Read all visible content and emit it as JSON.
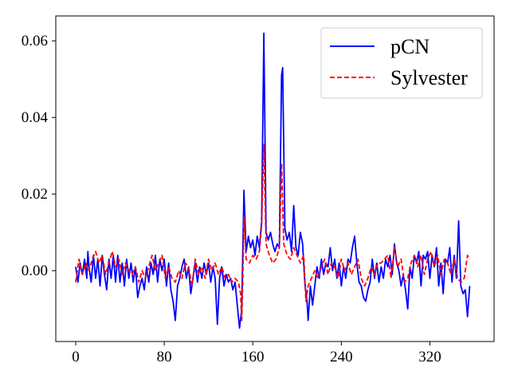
{
  "chart_data": {
    "type": "line",
    "title": "",
    "xlabel": "",
    "ylabel": "",
    "xlim": [
      -18,
      378
    ],
    "ylim": [
      -0.0185,
      0.0665
    ],
    "xticks": [
      0,
      80,
      160,
      240,
      320
    ],
    "yticks": [
      0.0,
      0.02,
      0.04,
      0.06
    ],
    "ytick_labels": [
      "0.00",
      "0.02",
      "0.04",
      "0.06"
    ],
    "grid": false,
    "legend_position": "top-right",
    "series": [
      {
        "name": "pCN",
        "color": "#0000ff",
        "style": "solid",
        "points": [
          [
            0,
            0.001
          ],
          [
            2,
            -0.003
          ],
          [
            4,
            0.002
          ],
          [
            6,
            -0.001
          ],
          [
            8,
            0.003
          ],
          [
            10,
            -0.002
          ],
          [
            11,
            0.005
          ],
          [
            12,
            0.001
          ],
          [
            14,
            -0.003
          ],
          [
            16,
            0.004
          ],
          [
            18,
            -0.002
          ],
          [
            20,
            0.003
          ],
          [
            22,
            -0.004
          ],
          [
            24,
            0.004
          ],
          [
            26,
            -0.001
          ],
          [
            28,
            -0.005
          ],
          [
            30,
            0.003
          ],
          [
            32,
            -0.002
          ],
          [
            34,
            0.004
          ],
          [
            36,
            -0.003
          ],
          [
            38,
            0.004
          ],
          [
            40,
            -0.003
          ],
          [
            42,
            0.002
          ],
          [
            44,
            -0.004
          ],
          [
            46,
            0.003
          ],
          [
            48,
            -0.002
          ],
          [
            50,
            0.002
          ],
          [
            52,
            -0.003
          ],
          [
            54,
            0.001
          ],
          [
            56,
            -0.007
          ],
          [
            58,
            -0.004
          ],
          [
            60,
            -0.002
          ],
          [
            62,
            -0.005
          ],
          [
            64,
            0.001
          ],
          [
            66,
            -0.003
          ],
          [
            68,
            0.002
          ],
          [
            70,
            -0.001
          ],
          [
            72,
            0.004
          ],
          [
            74,
            -0.003
          ],
          [
            76,
            0.003
          ],
          [
            78,
            0.0
          ],
          [
            80,
            0.003
          ],
          [
            82,
            -0.004
          ],
          [
            84,
            0.002
          ],
          [
            86,
            -0.005
          ],
          [
            88,
            -0.008
          ],
          [
            90,
            -0.013
          ],
          [
            92,
            -0.004
          ],
          [
            94,
            -0.002
          ],
          [
            96,
            0.001
          ],
          [
            98,
            0.003
          ],
          [
            100,
            -0.002
          ],
          [
            102,
            0.001
          ],
          [
            104,
            -0.006
          ],
          [
            106,
            -0.002
          ],
          [
            108,
            0.002
          ],
          [
            110,
            -0.003
          ],
          [
            112,
            0.001
          ],
          [
            114,
            -0.002
          ],
          [
            116,
            0.002
          ],
          [
            118,
            -0.001
          ],
          [
            120,
            0.002
          ],
          [
            122,
            -0.003
          ],
          [
            124,
            0.001
          ],
          [
            126,
            -0.002
          ],
          [
            128,
            -0.014
          ],
          [
            130,
            -0.002
          ],
          [
            132,
            0.001
          ],
          [
            134,
            -0.004
          ],
          [
            136,
            -0.001
          ],
          [
            138,
            -0.003
          ],
          [
            140,
            -0.002
          ],
          [
            142,
            -0.005
          ],
          [
            144,
            -0.003
          ],
          [
            146,
            -0.009
          ],
          [
            148,
            -0.015
          ],
          [
            150,
            -0.01
          ],
          [
            152,
            0.021
          ],
          [
            154,
            0.005
          ],
          [
            156,
            0.009
          ],
          [
            158,
            0.006
          ],
          [
            160,
            0.008
          ],
          [
            162,
            0.004
          ],
          [
            164,
            0.009
          ],
          [
            166,
            0.006
          ],
          [
            168,
            0.013
          ],
          [
            170,
            0.062
          ],
          [
            172,
            0.01
          ],
          [
            174,
            0.008
          ],
          [
            176,
            0.01
          ],
          [
            178,
            0.007
          ],
          [
            180,
            0.005
          ],
          [
            182,
            0.007
          ],
          [
            184,
            0.006
          ],
          [
            186,
            0.051
          ],
          [
            187,
            0.053
          ],
          [
            189,
            0.011
          ],
          [
            191,
            0.008
          ],
          [
            193,
            0.01
          ],
          [
            195,
            0.005
          ],
          [
            197,
            0.017
          ],
          [
            199,
            0.006
          ],
          [
            201,
            0.004
          ],
          [
            203,
            0.01
          ],
          [
            205,
            0.007
          ],
          [
            207,
            -0.003
          ],
          [
            209,
            -0.008
          ],
          [
            210,
            -0.013
          ],
          [
            212,
            -0.004
          ],
          [
            214,
            -0.009
          ],
          [
            216,
            -0.004
          ],
          [
            218,
            0.001
          ],
          [
            220,
            -0.002
          ],
          [
            222,
            0.003
          ],
          [
            224,
            -0.001
          ],
          [
            226,
            0.002
          ],
          [
            228,
            0.001
          ],
          [
            230,
            0.006
          ],
          [
            232,
            0.0
          ],
          [
            234,
            0.003
          ],
          [
            236,
            -0.002
          ],
          [
            238,
            0.002
          ],
          [
            240,
            -0.004
          ],
          [
            242,
            0.001
          ],
          [
            244,
            -0.002
          ],
          [
            246,
            0.003
          ],
          [
            248,
            0.002
          ],
          [
            250,
            0.006
          ],
          [
            252,
            0.009
          ],
          [
            254,
            0.002
          ],
          [
            256,
            -0.003
          ],
          [
            258,
            -0.004
          ],
          [
            260,
            -0.007
          ],
          [
            262,
            -0.008
          ],
          [
            264,
            -0.005
          ],
          [
            266,
            -0.003
          ],
          [
            268,
            0.003
          ],
          [
            270,
            -0.002
          ],
          [
            272,
            0.002
          ],
          [
            274,
            -0.003
          ],
          [
            276,
            0.001
          ],
          [
            278,
            -0.002
          ],
          [
            280,
            0.003
          ],
          [
            282,
            0.001
          ],
          [
            284,
            0.004
          ],
          [
            286,
            -0.001
          ],
          [
            288,
            0.007
          ],
          [
            290,
            0.002
          ],
          [
            292,
            0.0
          ],
          [
            294,
            -0.004
          ],
          [
            296,
            -0.001
          ],
          [
            298,
            -0.005
          ],
          [
            300,
            -0.01
          ],
          [
            302,
            0.001
          ],
          [
            304,
            -0.002
          ],
          [
            306,
            0.004
          ],
          [
            308,
            0.002
          ],
          [
            310,
            0.005
          ],
          [
            312,
            -0.004
          ],
          [
            314,
            0.004
          ],
          [
            316,
            0.003
          ],
          [
            318,
            0.005
          ],
          [
            320,
            -0.002
          ],
          [
            322,
            0.004
          ],
          [
            324,
            0.001
          ],
          [
            326,
            0.006
          ],
          [
            328,
            -0.004
          ],
          [
            330,
            0.002
          ],
          [
            332,
            -0.006
          ],
          [
            334,
            0.003
          ],
          [
            336,
            0.002
          ],
          [
            338,
            0.006
          ],
          [
            340,
            -0.003
          ],
          [
            342,
            0.004
          ],
          [
            344,
            -0.002
          ],
          [
            346,
            0.013
          ],
          [
            348,
            -0.004
          ],
          [
            350,
            -0.006
          ],
          [
            352,
            -0.005
          ],
          [
            354,
            -0.012
          ],
          [
            356,
            -0.004
          ]
        ]
      },
      {
        "name": "Sylvester",
        "color": "#ff0000",
        "style": "dashed",
        "points": [
          [
            0,
            -0.003
          ],
          [
            3,
            0.003
          ],
          [
            6,
            -0.001
          ],
          [
            9,
            0.002
          ],
          [
            12,
            0.0
          ],
          [
            15,
            0.003
          ],
          [
            18,
            0.005
          ],
          [
            21,
            0.002
          ],
          [
            24,
            0.004
          ],
          [
            27,
            -0.001
          ],
          [
            30,
            0.002
          ],
          [
            33,
            0.005
          ],
          [
            36,
            0.001
          ],
          [
            39,
            0.003
          ],
          [
            42,
            -0.001
          ],
          [
            45,
            0.002
          ],
          [
            48,
            0.0
          ],
          [
            51,
            -0.001
          ],
          [
            54,
            0.001
          ],
          [
            57,
            -0.003
          ],
          [
            60,
            0.0
          ],
          [
            63,
            -0.002
          ],
          [
            66,
            0.001
          ],
          [
            69,
            0.004
          ],
          [
            72,
            0.0
          ],
          [
            75,
            0.002
          ],
          [
            78,
            0.004
          ],
          [
            81,
            -0.002
          ],
          [
            84,
            0.001
          ],
          [
            87,
            -0.002
          ],
          [
            90,
            -0.003
          ],
          [
            93,
            0.0
          ],
          [
            96,
            -0.002
          ],
          [
            99,
            0.002
          ],
          [
            102,
            0.001
          ],
          [
            105,
            -0.004
          ],
          [
            108,
            0.003
          ],
          [
            111,
            -0.001
          ],
          [
            114,
            0.001
          ],
          [
            117,
            -0.002
          ],
          [
            120,
            0.003
          ],
          [
            123,
            0.0
          ],
          [
            126,
            0.002
          ],
          [
            129,
            -0.001
          ],
          [
            132,
            0.001
          ],
          [
            135,
            -0.002
          ],
          [
            138,
            -0.001
          ],
          [
            141,
            -0.003
          ],
          [
            144,
            -0.002
          ],
          [
            147,
            -0.003
          ],
          [
            149,
            -0.006
          ],
          [
            150,
            -0.013
          ],
          [
            151,
            -0.002
          ],
          [
            152,
            0.014
          ],
          [
            154,
            0.003
          ],
          [
            157,
            0.002
          ],
          [
            160,
            0.004
          ],
          [
            163,
            0.003
          ],
          [
            166,
            0.005
          ],
          [
            168,
            0.012
          ],
          [
            170,
            0.033
          ],
          [
            172,
            0.007
          ],
          [
            175,
            0.004
          ],
          [
            178,
            0.002
          ],
          [
            181,
            0.003
          ],
          [
            184,
            0.006
          ],
          [
            186,
            0.028
          ],
          [
            188,
            0.007
          ],
          [
            191,
            0.004
          ],
          [
            194,
            0.003
          ],
          [
            197,
            0.006
          ],
          [
            200,
            0.004
          ],
          [
            203,
            0.002
          ],
          [
            206,
            0.004
          ],
          [
            208,
            -0.008
          ],
          [
            210,
            -0.004
          ],
          [
            213,
            -0.002
          ],
          [
            216,
            0.0
          ],
          [
            219,
            -0.002
          ],
          [
            222,
            0.001
          ],
          [
            225,
            0.003
          ],
          [
            228,
            -0.001
          ],
          [
            231,
            0.002
          ],
          [
            234,
            0.001
          ],
          [
            237,
            -0.002
          ],
          [
            240,
            0.003
          ],
          [
            243,
            0.0
          ],
          [
            246,
            0.002
          ],
          [
            249,
            -0.001
          ],
          [
            252,
            0.001
          ],
          [
            255,
            0.003
          ],
          [
            258,
            -0.002
          ],
          [
            261,
            -0.004
          ],
          [
            264,
            -0.002
          ],
          [
            267,
            0.001
          ],
          [
            270,
            -0.001
          ],
          [
            273,
            0.002
          ],
          [
            276,
            0.002
          ],
          [
            279,
            0.003
          ],
          [
            282,
            0.004
          ],
          [
            285,
            -0.002
          ],
          [
            288,
            0.006
          ],
          [
            291,
            0.001
          ],
          [
            294,
            0.003
          ],
          [
            297,
            -0.003
          ],
          [
            300,
            -0.002
          ],
          [
            303,
            0.002
          ],
          [
            306,
            0.004
          ],
          [
            309,
            0.001
          ],
          [
            312,
            0.004
          ],
          [
            315,
            -0.001
          ],
          [
            318,
            0.003
          ],
          [
            321,
            0.005
          ],
          [
            324,
            0.001
          ],
          [
            327,
            0.004
          ],
          [
            330,
            -0.001
          ],
          [
            333,
            0.003
          ],
          [
            336,
            0.002
          ],
          [
            339,
            -0.001
          ],
          [
            342,
            0.003
          ],
          [
            345,
            -0.002
          ],
          [
            348,
            -0.003
          ],
          [
            351,
            -0.002
          ],
          [
            354,
            0.004
          ],
          [
            356,
            0.003
          ]
        ]
      }
    ]
  }
}
